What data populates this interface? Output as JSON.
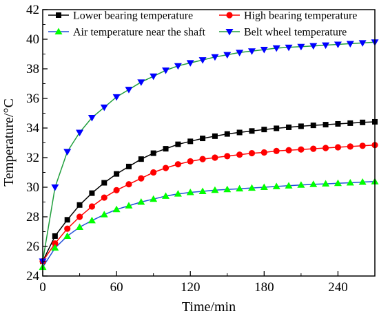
{
  "chart_data": {
    "type": "line",
    "xlabel": "Time/min",
    "ylabel": "Temperature/°C",
    "xlim": [
      0,
      270
    ],
    "ylim": [
      24,
      42
    ],
    "xticks": [
      0,
      60,
      120,
      180,
      240
    ],
    "yticks": [
      24,
      26,
      28,
      30,
      32,
      34,
      36,
      38,
      40,
      42
    ],
    "grid": false,
    "legend_position": "top",
    "x": [
      0,
      10,
      20,
      30,
      40,
      50,
      60,
      70,
      80,
      90,
      100,
      110,
      120,
      130,
      140,
      150,
      160,
      170,
      180,
      190,
      200,
      210,
      220,
      230,
      240,
      250,
      260,
      270
    ],
    "series": [
      {
        "name": "Lower bearing temperature",
        "color": "#000000",
        "line_color": "#000000",
        "marker": "square",
        "values": [
          25.0,
          26.7,
          27.8,
          28.8,
          29.6,
          30.3,
          30.9,
          31.4,
          31.9,
          32.3,
          32.6,
          32.9,
          33.1,
          33.3,
          33.45,
          33.6,
          33.7,
          33.8,
          33.9,
          33.98,
          34.05,
          34.12,
          34.18,
          34.23,
          34.28,
          34.33,
          34.38,
          34.42
        ]
      },
      {
        "name": "High bearing temperature",
        "color": "#ff0000",
        "line_color": "#ff0000",
        "marker": "circle",
        "values": [
          25.0,
          26.2,
          27.2,
          28.0,
          28.7,
          29.3,
          29.8,
          30.2,
          30.6,
          31.0,
          31.3,
          31.55,
          31.75,
          31.9,
          32.0,
          32.1,
          32.2,
          32.3,
          32.35,
          32.45,
          32.5,
          32.55,
          32.6,
          32.65,
          32.7,
          32.75,
          32.8,
          32.85
        ]
      },
      {
        "name": "Air temperature near the shaft",
        "color": "#00ff00",
        "line_color": "#1f4fd8",
        "marker": "triangle-up",
        "values": [
          24.6,
          25.9,
          26.7,
          27.3,
          27.75,
          28.15,
          28.5,
          28.75,
          29.0,
          29.2,
          29.4,
          29.55,
          29.65,
          29.72,
          29.8,
          29.85,
          29.9,
          29.95,
          30.0,
          30.05,
          30.1,
          30.15,
          30.2,
          30.23,
          30.27,
          30.3,
          30.35,
          30.38
        ]
      },
      {
        "name": "Belt wheel temperature",
        "color": "#0000ff",
        "line_color": "#1e9e3a",
        "marker": "triangle-down",
        "values": [
          25.0,
          30.0,
          32.4,
          33.7,
          34.7,
          35.4,
          36.1,
          36.6,
          37.1,
          37.5,
          37.9,
          38.2,
          38.4,
          38.6,
          38.8,
          38.95,
          39.1,
          39.2,
          39.3,
          39.4,
          39.45,
          39.5,
          39.55,
          39.6,
          39.65,
          39.7,
          39.75,
          39.8
        ]
      }
    ]
  }
}
